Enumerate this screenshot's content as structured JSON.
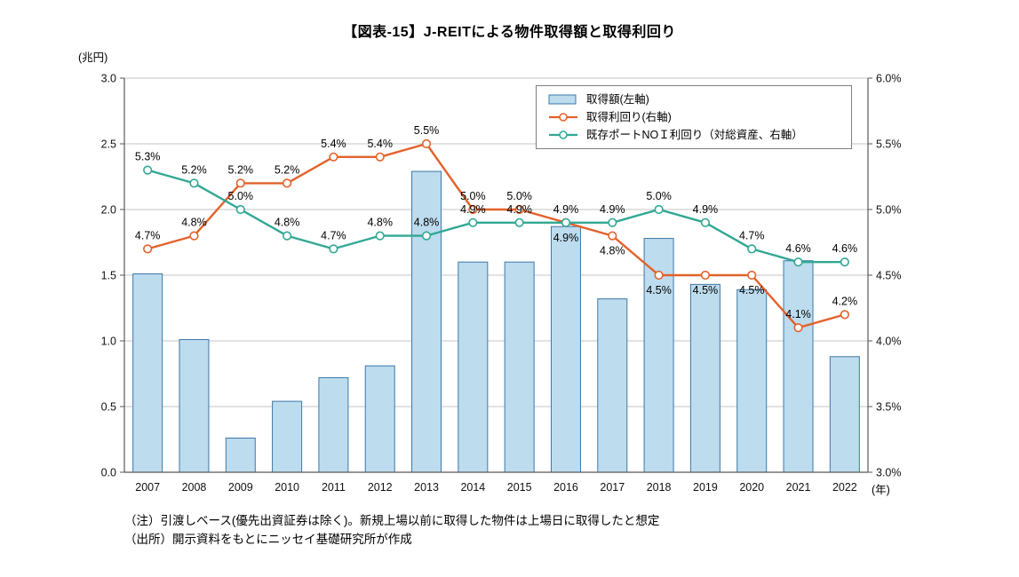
{
  "page": {
    "notes": [
      "（注）引渡しベース(優先出資証券は除く)。新規上場以前に取得した物件は上場日に取得したと想定",
      "（出所）開示資料をもとにニッセイ基礎研究所が作成"
    ]
  },
  "chart_data": {
    "type": "bar+line",
    "title": "【図表-15】J-REITによる物件取得額と取得利回り",
    "grid": true,
    "legend_position": "top-right-inside",
    "colors": {
      "bar_fill": "#BDDCEE",
      "bar_stroke": "#3C78A8",
      "acquisition_yield_line": "#E2622B",
      "noi_yield_line": "#31A793",
      "gridline": "#C6C6C6",
      "axis": "#595959"
    },
    "left_axis": {
      "unit_label": "(兆円)",
      "min": 0,
      "max": 3,
      "step": 0.5,
      "ticks": [
        "3.0",
        "2.5",
        "2.0",
        "1.5",
        "1.0",
        "0.5",
        "0.0"
      ]
    },
    "right_axis": {
      "min": 3,
      "max": 6,
      "step": 0.5,
      "ticks": [
        "6.0%",
        "5.5%",
        "5.0%",
        "4.5%",
        "4.0%",
        "3.5%",
        "3.0%"
      ]
    },
    "x_axis": {
      "unit_label": "(年)",
      "categories": [
        "2007",
        "2008",
        "2009",
        "2010",
        "2011",
        "2012",
        "2013",
        "2014",
        "2015",
        "2016",
        "2017",
        "2018",
        "2019",
        "2020",
        "2021",
        "2022"
      ]
    },
    "series": [
      {
        "name": "取得額(左軸)",
        "type": "bar",
        "axis": "left",
        "values": [
          1.51,
          1.01,
          0.26,
          0.54,
          0.72,
          0.81,
          2.29,
          1.6,
          1.6,
          1.87,
          1.32,
          1.78,
          1.43,
          1.39,
          1.61,
          0.88
        ]
      },
      {
        "name": "取得利回り(右軸)",
        "type": "line",
        "axis": "right",
        "values": [
          4.7,
          4.8,
          5.2,
          5.2,
          5.4,
          5.4,
          5.5,
          5.0,
          5.0,
          4.9,
          4.8,
          4.5,
          4.5,
          4.5,
          4.1,
          4.2
        ],
        "labels": [
          "4.7%",
          "4.8%",
          "5.2%",
          "5.2%",
          "5.4%",
          "5.4%",
          "5.5%",
          "5.0%",
          "5.0%",
          "4.9%",
          "4.8%",
          "4.5%",
          "4.5%",
          "4.5%",
          "4.1%",
          "4.2%"
        ],
        "label_pos": [
          "above",
          "above",
          "above",
          "above",
          "above",
          "above",
          "above",
          "above",
          "above",
          "below",
          "below",
          "below",
          "below",
          "below",
          "above",
          "above"
        ]
      },
      {
        "name": "既存ポートNOＩ利回り（対総資産、右軸）",
        "type": "line",
        "axis": "right",
        "values": [
          5.3,
          5.2,
          5.0,
          4.8,
          4.7,
          4.8,
          4.8,
          4.9,
          4.9,
          4.9,
          4.9,
          5.0,
          4.9,
          4.7,
          4.6,
          4.6
        ],
        "labels": [
          "5.3%",
          "5.2%",
          "5.0%",
          "4.8%",
          "4.7%",
          "4.8%",
          "4.8%",
          "4.9%",
          "4.9%",
          "4.9%",
          "4.9%",
          "5.0%",
          "4.9%",
          "4.7%",
          "4.6%",
          "4.6%"
        ],
        "label_pos": [
          "above",
          "above",
          "above",
          "above",
          "above",
          "above",
          "above",
          "above",
          "above",
          "above",
          "above",
          "above",
          "above",
          "above",
          "above",
          "above"
        ]
      }
    ]
  }
}
